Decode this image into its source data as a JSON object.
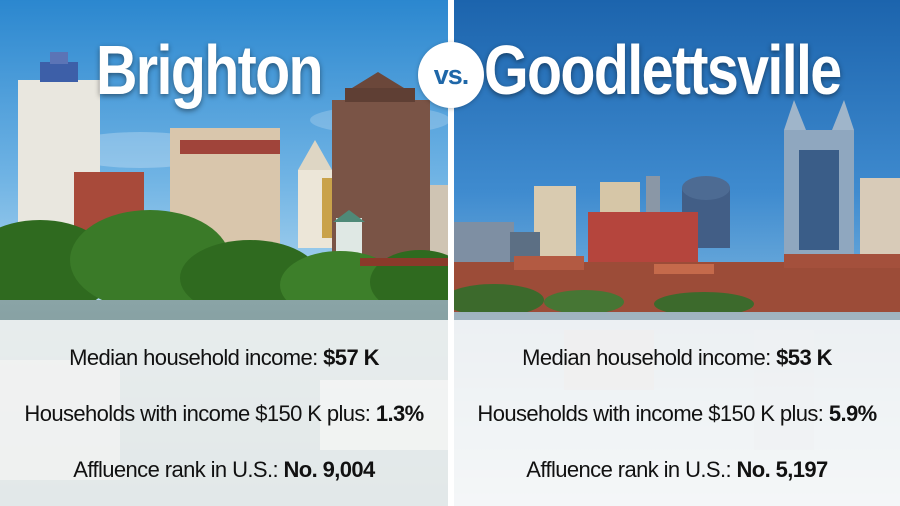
{
  "vs_label": "vs.",
  "left": {
    "city": "Brighton",
    "stats": [
      {
        "label": "Median household income: ",
        "value": "$57 K"
      },
      {
        "label": "Households with income $150 K plus: ",
        "value": "1.3%"
      },
      {
        "label": "Affluence rank in U.S.: ",
        "value": "No. 9,004"
      }
    ]
  },
  "right": {
    "city": "Goodlettsville",
    "stats": [
      {
        "label": "Median household income: ",
        "value": "$53 K"
      },
      {
        "label": "Households with income $150 K plus: ",
        "value": "5.9%"
      },
      {
        "label": "Affluence rank in U.S.: ",
        "value": "No. 5,197"
      }
    ]
  },
  "colors": {
    "vs_text": "#1f67a8",
    "left_sky": "#2d8fd3",
    "right_sky": "#1f6fb8"
  }
}
